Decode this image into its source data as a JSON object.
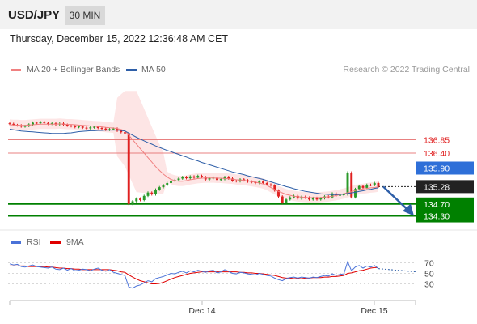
{
  "header": {
    "pair": "USD/JPY",
    "timeframe": "30 MIN"
  },
  "datetime": "Thursday, December 15, 2022 12:36:48 AM CET",
  "legend": {
    "ma20": {
      "label": "MA 20 + Bollinger Bands",
      "color": "#f08080"
    },
    "ma50": {
      "label": "MA 50",
      "color": "#2e5fa8"
    },
    "rsi": {
      "label": "RSI",
      "color": "#4a72d8"
    },
    "ma9": {
      "label": "9MA",
      "color": "#e00000"
    }
  },
  "credit": "Research © 2022 Trading Central",
  "colors": {
    "up": "#2a9a2a",
    "down": "#e02020",
    "blue_level": "#2e6fd8",
    "green_level": "#008000",
    "red_level": "#e88080",
    "arrow": "#2e5fa8"
  },
  "chart_data": {
    "type": "candlestick",
    "symbol": "USD/JPY",
    "timeframe": "30 MIN",
    "x_ticks": [
      "Dec 14",
      "Dec 15"
    ],
    "price_levels": [
      {
        "value": "136.85",
        "type": "resistance"
      },
      {
        "value": "136.40",
        "type": "resistance"
      },
      {
        "value": "135.90",
        "type": "pivot"
      },
      {
        "value": "135.28",
        "type": "last_price"
      },
      {
        "value": "134.70",
        "type": "target"
      },
      {
        "value": "134.30",
        "type": "target"
      }
    ],
    "price_ylim": [
      133.8,
      138.0
    ],
    "closes": [
      137.38,
      137.34,
      137.33,
      137.29,
      137.31,
      137.36,
      137.42,
      137.4,
      137.44,
      137.41,
      137.38,
      137.4,
      137.36,
      137.39,
      137.35,
      137.32,
      137.3,
      137.27,
      137.29,
      137.25,
      137.23,
      137.26,
      137.28,
      137.24,
      137.22,
      137.18,
      137.2,
      137.22,
      137.15,
      137.1,
      137.06,
      134.7,
      134.79,
      134.88,
      134.83,
      134.97,
      135.08,
      135.02,
      135.18,
      135.26,
      135.33,
      135.4,
      135.48,
      135.5,
      135.55,
      135.6,
      135.56,
      135.62,
      135.58,
      135.64,
      135.6,
      135.52,
      135.56,
      135.58,
      135.5,
      135.53,
      135.6,
      135.55,
      135.48,
      135.46,
      135.52,
      135.49,
      135.45,
      135.43,
      135.4,
      135.45,
      135.4,
      135.35,
      135.32,
      135.15,
      134.95,
      134.75,
      134.85,
      134.92,
      134.97,
      134.88,
      134.94,
      134.91,
      134.85,
      134.9,
      134.85,
      134.89,
      134.95,
      134.92,
      135.05,
      134.98,
      135.0,
      135.02,
      135.75,
      134.92,
      135.2,
      135.3,
      135.24,
      135.34,
      135.33,
      135.4,
      135.28
    ],
    "ma20": [
      137.35,
      137.34,
      137.34,
      137.33,
      137.33,
      137.34,
      137.35,
      137.36,
      137.37,
      137.37,
      137.37,
      137.37,
      137.37,
      137.38,
      137.37,
      137.36,
      137.36,
      137.35,
      137.34,
      137.33,
      137.32,
      137.31,
      137.3,
      137.29,
      137.28,
      137.26,
      137.25,
      137.24,
      137.22,
      137.19,
      137.15,
      137.0,
      136.85,
      136.7,
      136.55,
      136.4,
      136.25,
      136.1,
      135.95,
      135.82,
      135.7,
      135.6,
      135.52,
      135.48,
      135.46,
      135.46,
      135.48,
      135.51,
      135.53,
      135.55,
      135.56,
      135.57,
      135.57,
      135.57,
      135.56,
      135.56,
      135.55,
      135.54,
      135.53,
      135.51,
      135.5,
      135.49,
      135.47,
      135.45,
      135.43,
      135.4,
      135.37,
      135.32,
      135.25,
      135.18,
      135.12,
      135.07,
      135.02,
      134.99,
      134.96,
      134.94,
      134.93,
      134.92,
      134.91,
      134.91,
      134.91,
      134.92,
      134.93,
      134.94,
      134.96,
      134.98,
      135.01,
      135.04,
      135.08,
      135.11,
      135.15,
      135.18,
      135.2,
      135.22,
      135.24,
      135.25,
      135.27
    ],
    "ma50": [
      137.2,
      137.18,
      137.16,
      137.14,
      137.13,
      137.12,
      137.11,
      137.1,
      137.09,
      137.08,
      137.07,
      137.06,
      137.06,
      137.06,
      137.06,
      137.07,
      137.08,
      137.1,
      137.12,
      137.13,
      137.14,
      137.15,
      137.15,
      137.16,
      137.16,
      137.17,
      137.17,
      137.17,
      137.17,
      137.16,
      137.14,
      137.07,
      137.0,
      136.93,
      136.87,
      136.81,
      136.75,
      136.7,
      136.64,
      136.59,
      136.54,
      136.49,
      136.45,
      136.4,
      136.36,
      136.31,
      136.27,
      136.22,
      136.18,
      136.14,
      136.09,
      136.05,
      136.01,
      135.97,
      135.93,
      135.89,
      135.85,
      135.81,
      135.77,
      135.74,
      135.71,
      135.68,
      135.64,
      135.61,
      135.58,
      135.55,
      135.52,
      135.48,
      135.44,
      135.4,
      135.36,
      135.32,
      135.28,
      135.25,
      135.21,
      135.18,
      135.15,
      135.12,
      135.1,
      135.08,
      135.06,
      135.04,
      135.03,
      135.02,
      135.01,
      135.01,
      135.02,
      135.03,
      135.05,
      135.07,
      135.09,
      135.12,
      135.14,
      135.17,
      135.19,
      135.22,
      135.24
    ],
    "rsi_levels": [
      "70",
      "50",
      "30"
    ],
    "rsi": [
      68,
      66,
      67,
      63,
      62,
      64,
      66,
      63,
      62,
      61,
      60,
      62,
      58,
      57,
      60,
      56,
      59,
      55,
      56,
      58,
      57,
      55,
      58,
      60,
      56,
      54,
      57,
      52,
      50,
      48,
      46,
      24,
      22,
      26,
      28,
      32,
      36,
      34,
      40,
      42,
      44,
      47,
      50,
      49,
      52,
      54,
      51,
      55,
      53,
      56,
      54,
      52,
      55,
      56,
      51,
      53,
      57,
      54,
      50,
      49,
      52,
      51,
      49,
      48,
      47,
      50,
      48,
      46,
      45,
      41,
      38,
      36,
      40,
      42,
      43,
      41,
      43,
      42,
      41,
      43,
      42,
      44,
      46,
      45,
      49,
      46,
      48,
      49,
      72,
      55,
      62,
      65,
      60,
      64,
      62,
      65,
      59
    ],
    "rsi_ma9": [
      64,
      64,
      64,
      64,
      64,
      63,
      63,
      63,
      63,
      63,
      62,
      62,
      61,
      60,
      60,
      59,
      59,
      58,
      58,
      57,
      57,
      57,
      57,
      57,
      57,
      57,
      57,
      56,
      55,
      53,
      52,
      47,
      43,
      39,
      36,
      34,
      32,
      30,
      30,
      31,
      33,
      36,
      39,
      42,
      44,
      46,
      48,
      50,
      51,
      52,
      53,
      53,
      53,
      53,
      53,
      53,
      53,
      53,
      53,
      53,
      52,
      52,
      51,
      51,
      50,
      50,
      49,
      48,
      47,
      46,
      44,
      42,
      41,
      41,
      40,
      40,
      40,
      41,
      41,
      42,
      42,
      42,
      43,
      43,
      44,
      44,
      45,
      46,
      50,
      51,
      53,
      55,
      56,
      58,
      60,
      61,
      61
    ]
  }
}
